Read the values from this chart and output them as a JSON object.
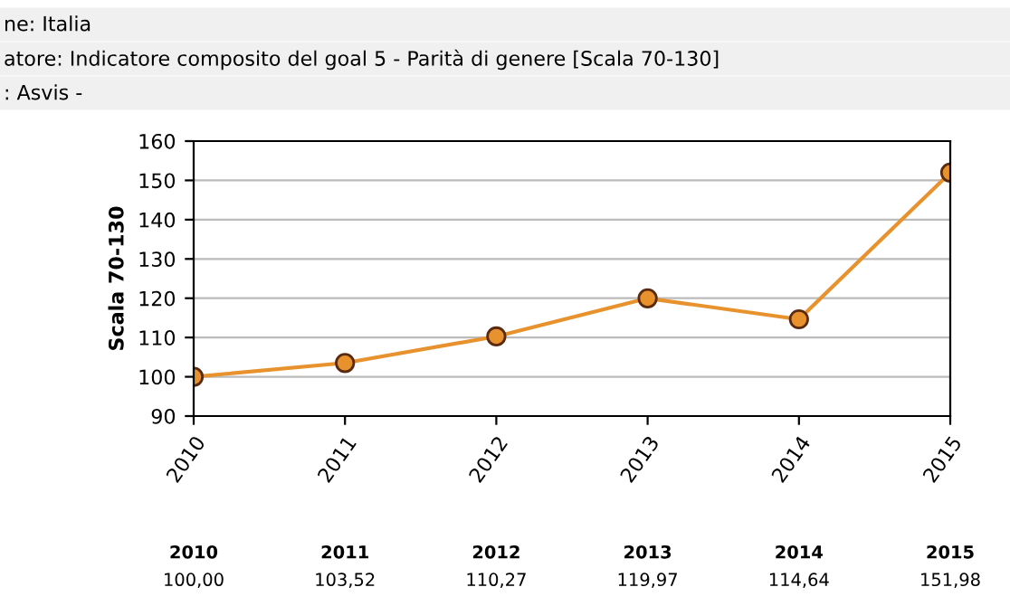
{
  "chart_data": {
    "type": "line",
    "ylabel": "Scala 70-130",
    "annotations": [
      "ne: Italia",
      "atore: Indicatore composito del goal 5 - Parità di genere [Scala 70-130]",
      ": Asvis -"
    ],
    "categories": [
      "2010",
      "2011",
      "2012",
      "2013",
      "2014",
      "2015"
    ],
    "series": [
      {
        "color": "#e8922e",
        "values": [
          100.0,
          103.52,
          110.27,
          119.97,
          114.64,
          151.98
        ],
        "value_labels": [
          "100,00",
          "103,52",
          "110,27",
          "119,97",
          "114,64",
          "151,98"
        ]
      }
    ],
    "ylim": [
      90,
      160
    ],
    "yticks": [
      90,
      100,
      110,
      120,
      130,
      140,
      150,
      160
    ],
    "grid": "y",
    "marker": "circle",
    "line_style": "solid",
    "legend": false
  }
}
